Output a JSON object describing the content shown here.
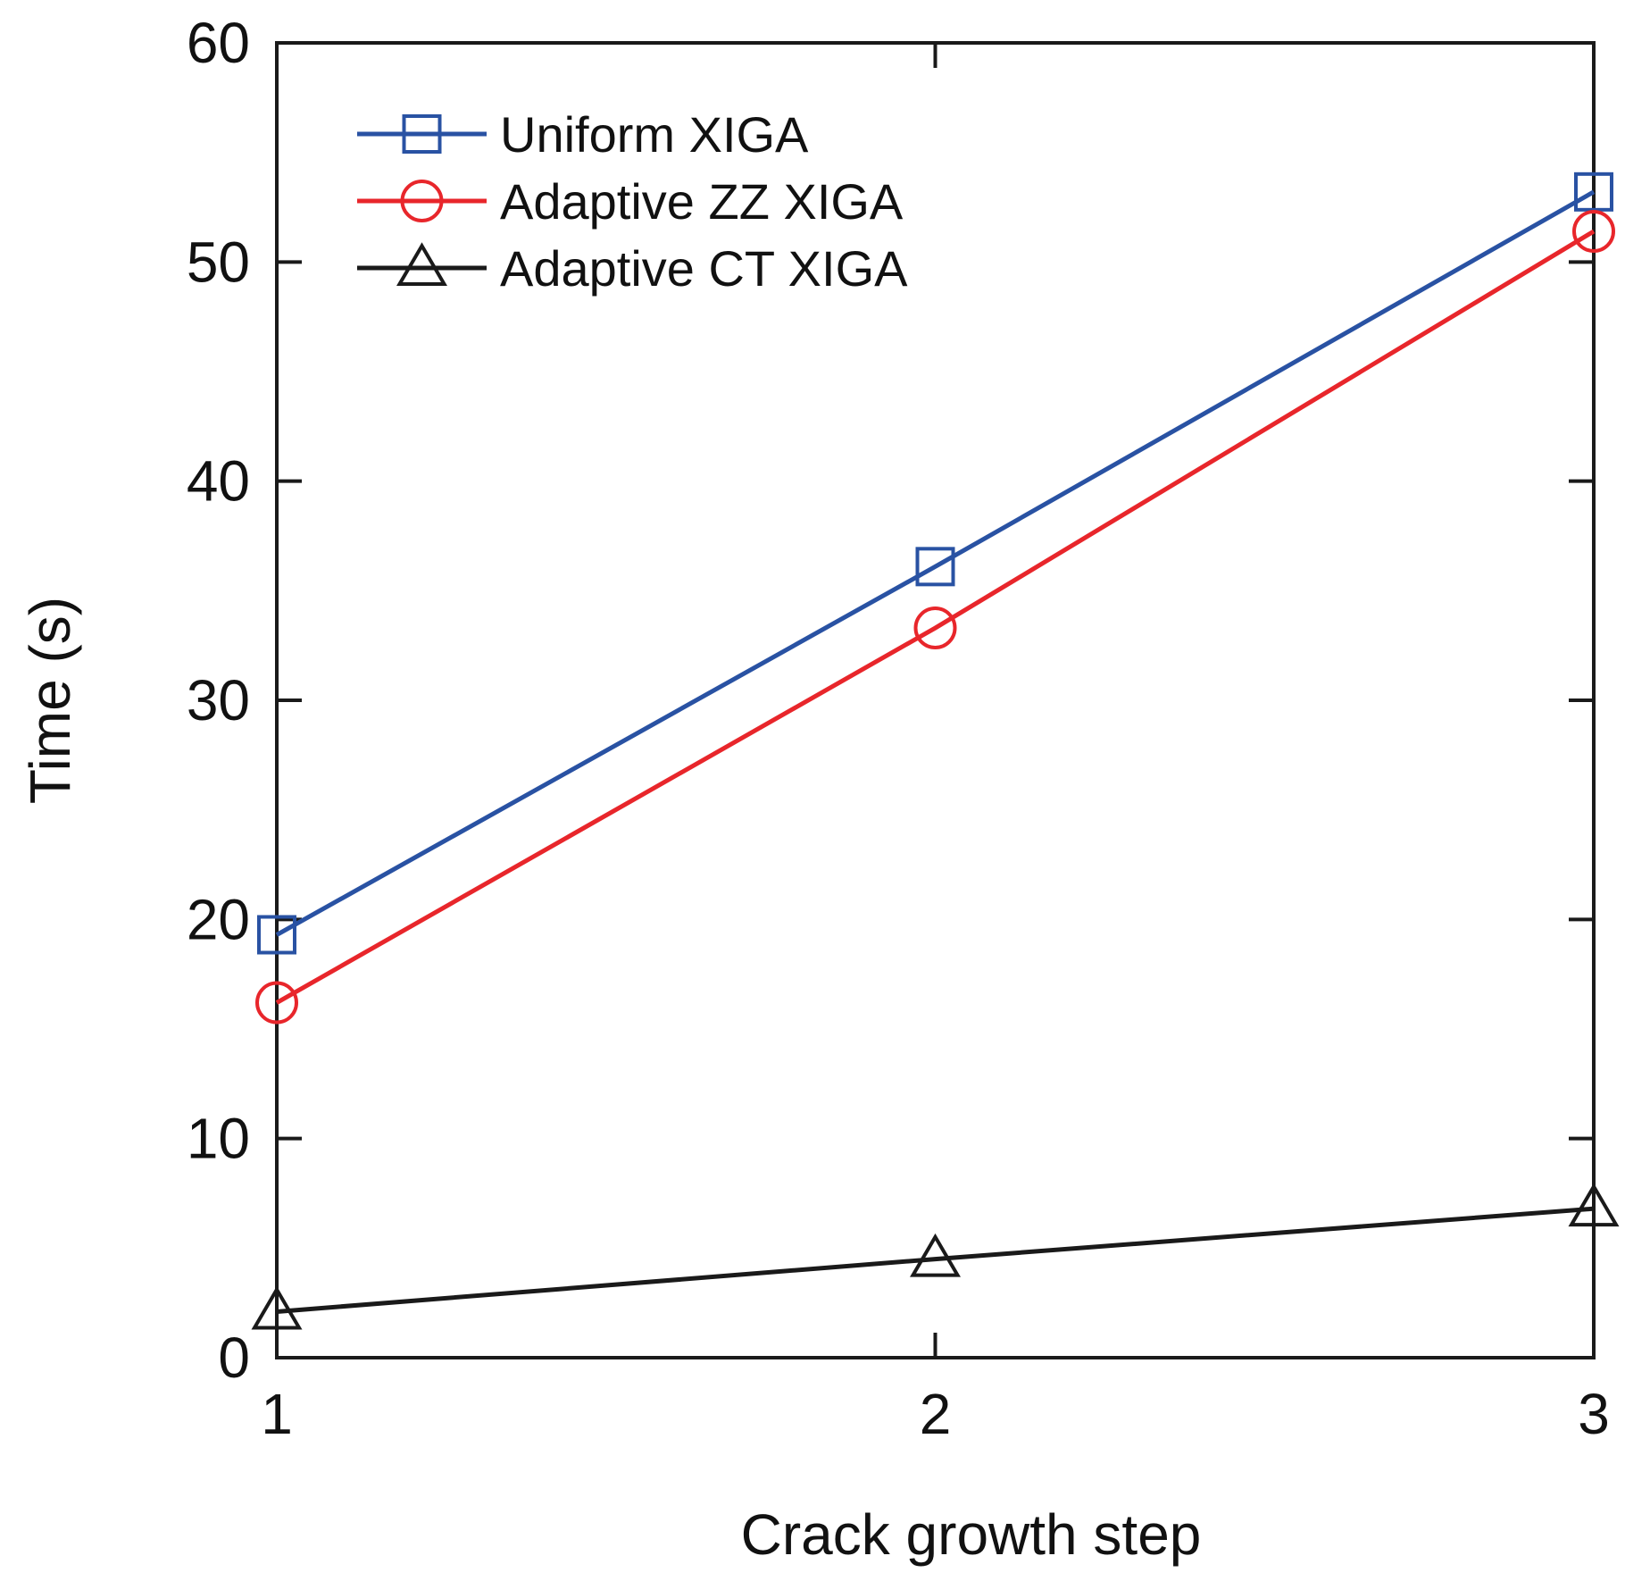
{
  "chart_data": {
    "type": "line",
    "title": "",
    "xlabel": "Crack growth step",
    "ylabel": "Time (s)",
    "x": [
      1,
      2,
      3
    ],
    "xlim": [
      1,
      3
    ],
    "ylim": [
      0,
      60
    ],
    "xticks": [
      1,
      2,
      3
    ],
    "yticks": [
      0,
      10,
      20,
      30,
      40,
      50,
      60
    ],
    "grid": false,
    "legend_position": "top-left",
    "series": [
      {
        "name": "Uniform XIGA",
        "values": [
          19.3,
          36.1,
          53.2
        ],
        "color": "#2952a3",
        "marker": "square"
      },
      {
        "name": "Adaptive ZZ XIGA",
        "values": [
          16.2,
          33.3,
          51.4
        ],
        "color": "#e8262b",
        "marker": "circle"
      },
      {
        "name": "Adaptive CT XIGA",
        "values": [
          2.1,
          4.5,
          6.8
        ],
        "color": "#1a1a1a",
        "marker": "triangle"
      }
    ]
  }
}
